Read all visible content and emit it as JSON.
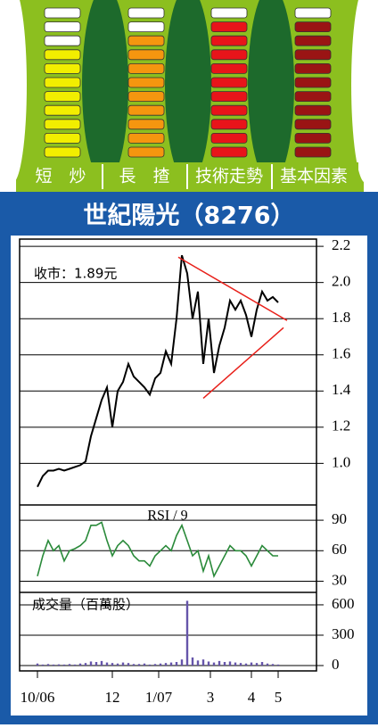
{
  "header": {
    "columns": [
      {
        "label": "短　炒",
        "filled": 8,
        "total": 11,
        "color": "#f2ee00"
      },
      {
        "label": "長　揸",
        "filled": 9,
        "total": 11,
        "color": "#f5960f"
      },
      {
        "label": "技術走勢",
        "filled": 10,
        "total": 11,
        "color": "#e8141a"
      },
      {
        "label": "基本因素",
        "filled": 10,
        "total": 11,
        "color": "#9a1414"
      }
    ]
  },
  "chart_data": [
    {
      "type": "line",
      "title": "世紀陽光（8276）",
      "annotation": "收市：1.89元",
      "color": "#000000",
      "x": [
        0,
        3,
        6,
        9,
        12,
        15,
        18,
        21,
        24,
        27,
        30,
        33,
        36,
        39,
        42,
        45,
        48,
        51,
        54,
        57,
        60,
        63,
        66,
        69,
        72,
        75,
        78,
        81,
        84,
        87,
        90,
        93,
        96,
        99,
        102,
        105,
        108,
        111,
        114,
        117,
        120,
        123,
        126,
        129,
        132,
        135
      ],
      "values": [
        0.87,
        0.93,
        0.96,
        0.96,
        0.97,
        0.96,
        0.97,
        0.98,
        0.99,
        1.01,
        1.15,
        1.25,
        1.35,
        1.42,
        1.2,
        1.4,
        1.45,
        1.55,
        1.48,
        1.45,
        1.42,
        1.38,
        1.47,
        1.5,
        1.62,
        1.55,
        1.8,
        2.15,
        2.05,
        1.8,
        1.95,
        1.55,
        1.8,
        1.5,
        1.65,
        1.75,
        1.9,
        1.85,
        1.9,
        1.82,
        1.7,
        1.85,
        1.95,
        1.9,
        1.92,
        1.89
      ],
      "trendlines": [
        {
          "x": [
            79,
            140
          ],
          "values": [
            2.14,
            1.79
          ],
          "color": "#e8201a"
        },
        {
          "x": [
            93,
            138
          ],
          "values": [
            1.36,
            1.75
          ],
          "color": "#e8201a"
        }
      ],
      "xlim": [
        -10,
        156.5
      ],
      "ylim": [
        0.77,
        2.24
      ],
      "xticks": [
        {
          "value": 0,
          "label": "10/06"
        },
        {
          "value": 42,
          "label": "12"
        },
        {
          "value": 68,
          "label": "1/07"
        },
        {
          "value": 97,
          "label": "3"
        },
        {
          "value": 120,
          "label": "4"
        },
        {
          "value": 135,
          "label": "5"
        }
      ],
      "yticks": [
        {
          "value": 1,
          "label": "1.0"
        },
        1.2,
        1.4,
        1.6,
        1.8,
        {
          "value": 2,
          "label": "2.0"
        },
        2.2
      ],
      "grid": true
    },
    {
      "type": "line",
      "title": "RSI / 9",
      "color": "#2a8a3a",
      "values": [
        35,
        55,
        70,
        60,
        65,
        50,
        60,
        62,
        65,
        70,
        85,
        85,
        88,
        70,
        55,
        65,
        70,
        65,
        55,
        50,
        50,
        45,
        55,
        60,
        65,
        60,
        75,
        85,
        70,
        55,
        60,
        40,
        55,
        35,
        45,
        55,
        65,
        60,
        60,
        55,
        45,
        55,
        65,
        60,
        55,
        55
      ],
      "ylim": [
        19,
        105
      ],
      "yticks": [
        30,
        60,
        90
      ],
      "grid": true
    },
    {
      "type": "bar",
      "title": "成交量（百萬股）",
      "color": "#6655aa",
      "values": [
        20,
        10,
        15,
        10,
        12,
        10,
        15,
        10,
        20,
        25,
        40,
        35,
        45,
        30,
        25,
        20,
        30,
        25,
        15,
        15,
        20,
        10,
        15,
        20,
        25,
        30,
        35,
        60,
        640,
        80,
        50,
        60,
        40,
        30,
        45,
        35,
        40,
        30,
        25,
        20,
        30,
        25,
        35,
        20,
        15,
        10
      ],
      "ylim": [
        -53,
        723
      ],
      "yticks": [
        0,
        300,
        600
      ],
      "grid": true
    }
  ]
}
